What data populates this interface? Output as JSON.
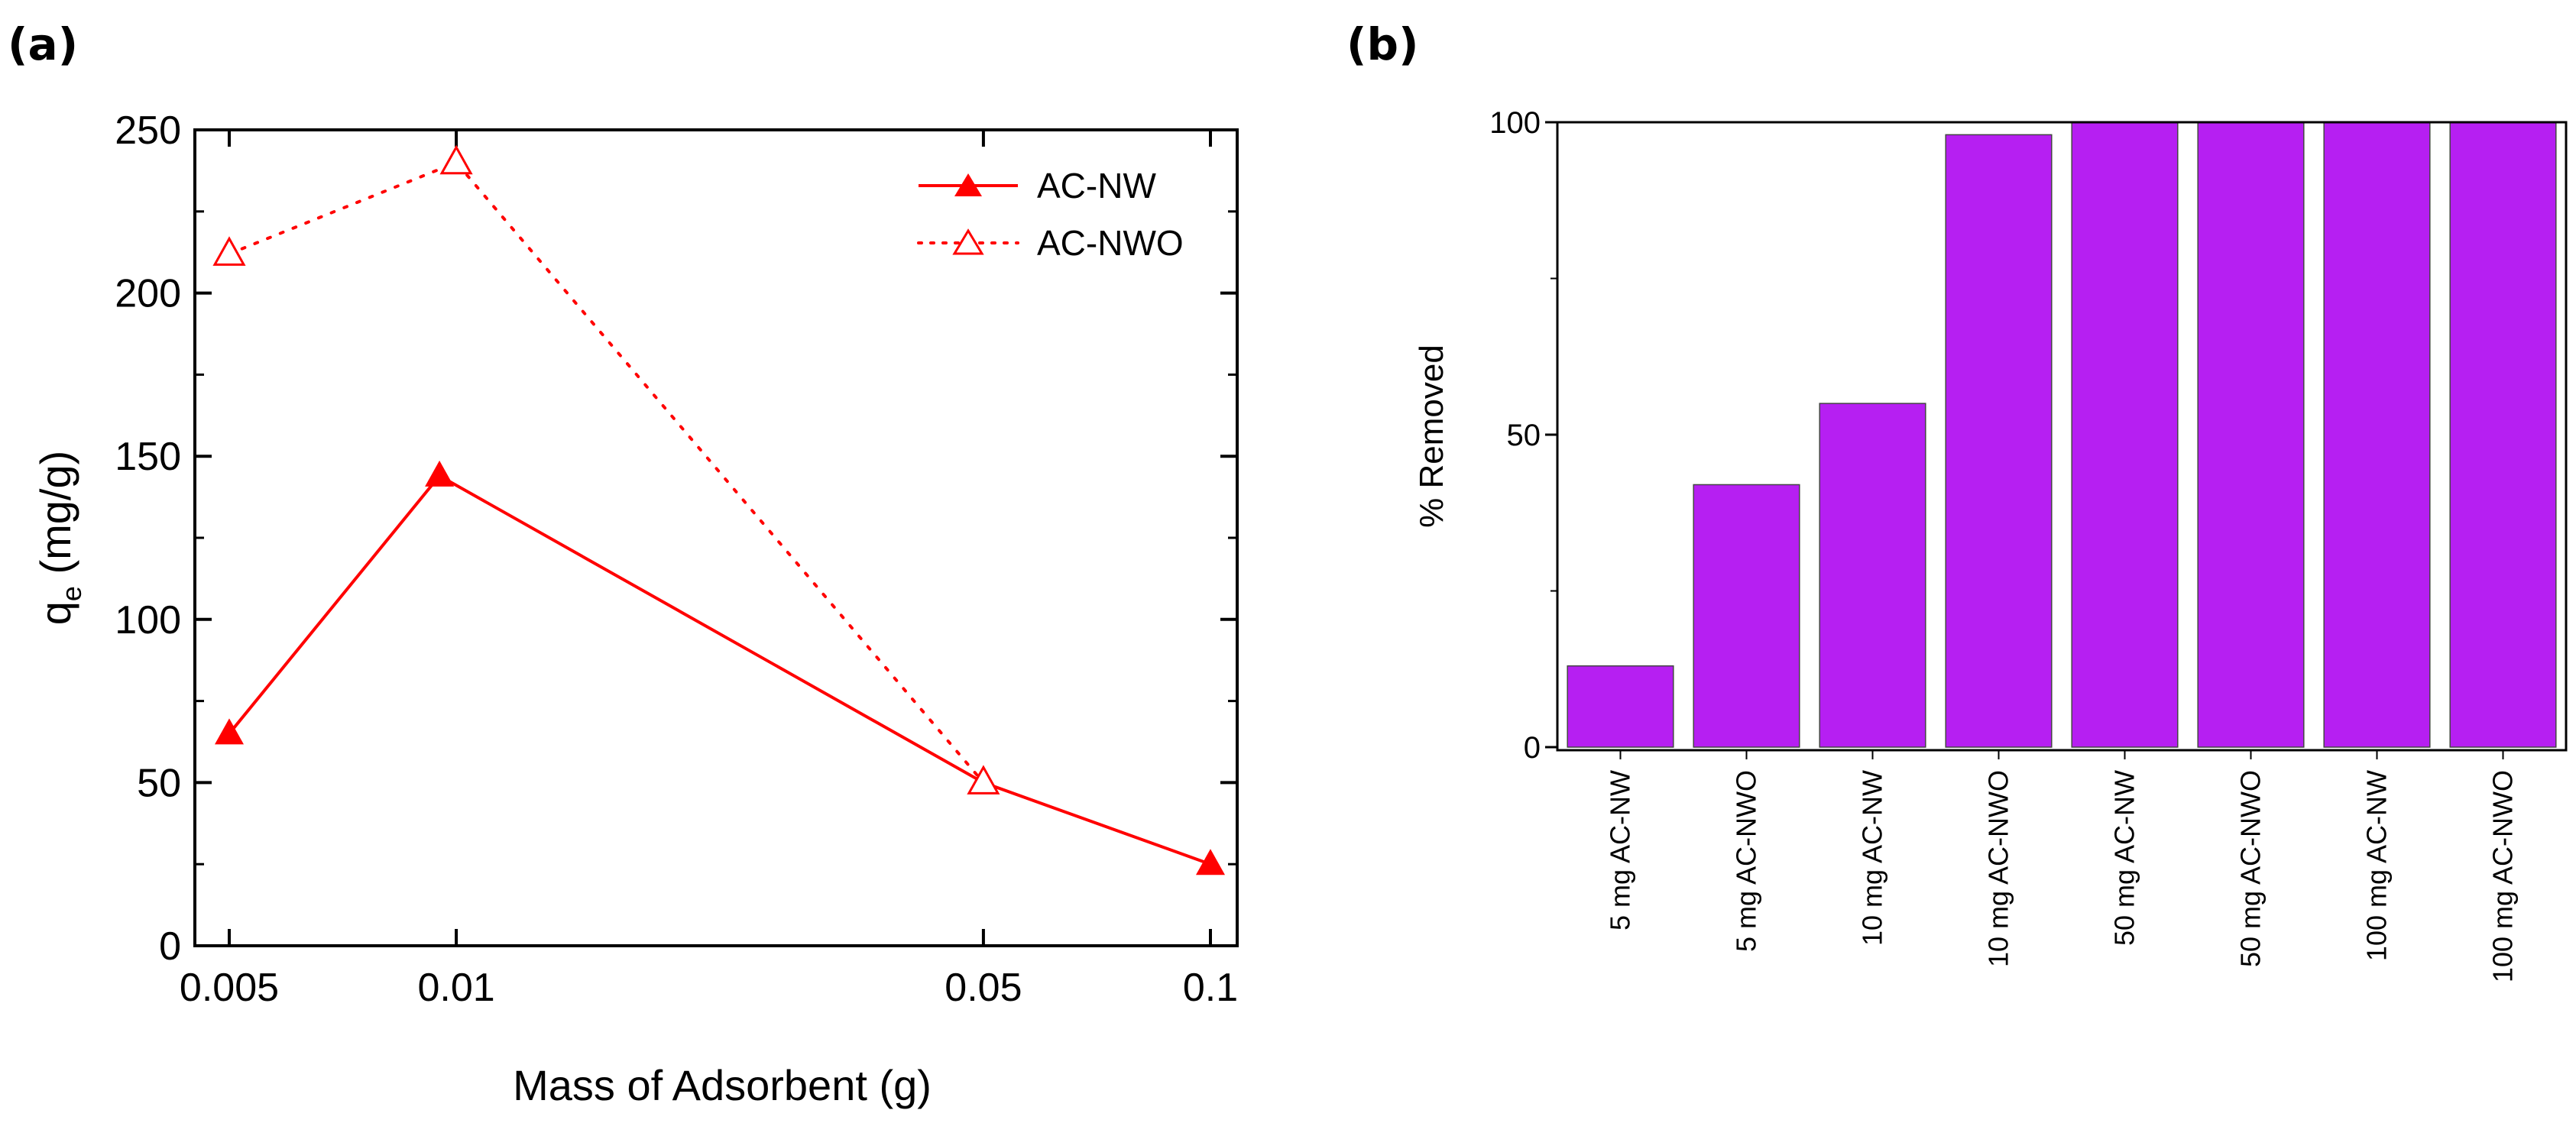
{
  "panel_labels": {
    "a": "(a)",
    "b": "(b)"
  },
  "chart_data": [
    {
      "type": "line",
      "xscale": "log",
      "x": [
        0.005,
        0.01,
        0.05,
        0.1
      ],
      "x_tick_labels": [
        "0.005",
        "0.01",
        "0.05",
        "0.1"
      ],
      "xlabel": "Mass of Adsorbent (g)",
      "ylabel_main": "q",
      "ylabel_sub": "e",
      "ylabel_rest": " (mg/g)",
      "ylim": [
        0,
        250
      ],
      "y_ticks": [
        0,
        50,
        100,
        150,
        200,
        250
      ],
      "y_tick_labels": [
        "0",
        "50",
        "100",
        "150",
        "200",
        "250"
      ],
      "grid": false,
      "legend_position": "top-right",
      "series": [
        {
          "name": "AC-NW",
          "x": [
            0.005,
            0.0095,
            0.05,
            0.1
          ],
          "values": [
            65,
            144,
            50,
            25
          ],
          "line_style": "solid",
          "marker": "filled-triangle",
          "color": "#ff0000"
        },
        {
          "name": "AC-NWO",
          "x": [
            0.005,
            0.01,
            0.05
          ],
          "values": [
            212,
            240,
            50
          ],
          "line_style": "dotted",
          "marker": "open-triangle",
          "color": "#ff0000"
        }
      ]
    },
    {
      "type": "bar",
      "categories": [
        "5 mg AC-NW",
        "5 mg AC-NWO",
        "10 mg AC-NW",
        "10 mg AC-NWO",
        "50 mg AC-NW",
        "50 mg AC-NWO",
        "100 mg AC-NW",
        "100 mg AC-NWO"
      ],
      "values": [
        13,
        42,
        55,
        98,
        100,
        100,
        100,
        100
      ],
      "ylabel": "% Removed",
      "ylim": [
        0,
        100
      ],
      "y_ticks": [
        0,
        50,
        100
      ],
      "y_tick_labels": [
        "0",
        "50",
        "100"
      ],
      "grid": false,
      "bar_color": "#b61ff2"
    }
  ]
}
